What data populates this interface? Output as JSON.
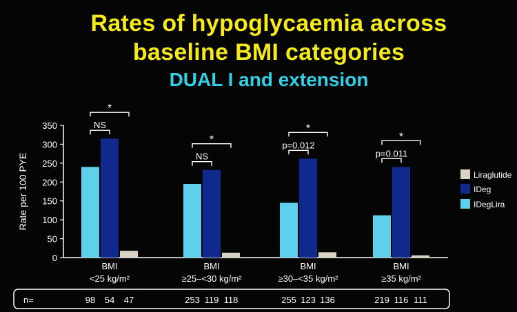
{
  "slide": {
    "title_line1": "Rates of hypoglycaemia across",
    "title_line2": "baseline BMI categories",
    "subtitle": "DUAL I and extension"
  },
  "chart_data": {
    "type": "bar",
    "ylabel": "Rate per 100 PYE",
    "ylim": [
      0,
      350
    ],
    "yticks": [
      0,
      50,
      100,
      150,
      200,
      250,
      300,
      350
    ],
    "categories": [
      [
        "BMI",
        "<25 kg/m²"
      ],
      [
        "BMI",
        "≥25–<30 kg/m²"
      ],
      [
        "BMI",
        "≥30–<35 kg/m²"
      ],
      [
        "BMI",
        "≥35 kg/m²"
      ]
    ],
    "series": [
      {
        "name": "IDegLira",
        "color": "#5ed0ec",
        "values": [
          240,
          195,
          145,
          112
        ]
      },
      {
        "name": "IDeg",
        "color": "#0f2a8c",
        "values": [
          315,
          232,
          262,
          240
        ]
      },
      {
        "name": "Liraglutide",
        "color": "#d9d3c6",
        "values": [
          18,
          13,
          14,
          6
        ]
      }
    ],
    "legend": {
      "position": "right",
      "order": [
        "Liraglutide",
        "IDeg",
        "IDegLira"
      ]
    },
    "comparisons": [
      {
        "pair": "IDegLira vs IDeg",
        "labels": [
          "NS",
          "NS",
          "p=0.012",
          "p=0.011"
        ]
      },
      {
        "pair": "IDegLira vs Liraglutide",
        "labels": [
          "*",
          "*",
          "*",
          "*"
        ]
      }
    ],
    "n_label": "n=",
    "n_values": [
      [
        98,
        54,
        47
      ],
      [
        253,
        119,
        118
      ],
      [
        255,
        123,
        136
      ],
      [
        219,
        116,
        111
      ]
    ],
    "grid": false
  }
}
